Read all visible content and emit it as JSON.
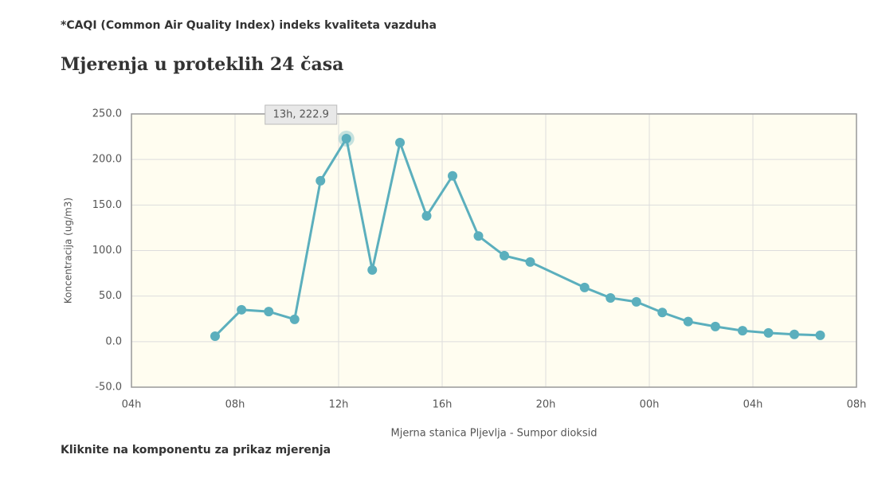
{
  "header": {
    "note": "*CAQI (Common Air Quality Index) indeks kvaliteta vazduha",
    "title": "Mjerenja u proteklih 24 časa"
  },
  "chart_data": {
    "type": "line",
    "ylabel": "Koncentracija (ug/m3)",
    "xlabel": "Mjerna stanica Pljevlja - Sumpor dioksid",
    "tooltip": "13h, 222.9",
    "x": [
      7.23,
      8.25,
      9.3,
      10.3,
      11.3,
      12.3,
      13.3,
      14.37,
      15.4,
      16.4,
      17.4,
      18.4,
      19.4,
      21.5,
      22.5,
      23.5,
      24.5,
      25.5,
      26.55,
      27.6,
      28.6,
      29.6,
      30.6
    ],
    "series": [
      {
        "name": "Sumpor dioksid",
        "color": "#5bafbd",
        "values": [
          6,
          35,
          33,
          24.5,
          176.6,
          222.9,
          78.7,
          218.5,
          138,
          182,
          116,
          94.4,
          87.4,
          59.4,
          48,
          43.7,
          32,
          22,
          16.6,
          12,
          9.6,
          7.9,
          7
        ]
      }
    ],
    "xlim": [
      4,
      32
    ],
    "xticks": [
      {
        "value": 4,
        "label": "04h"
      },
      {
        "value": 8,
        "label": "08h"
      },
      {
        "value": 12,
        "label": "12h"
      },
      {
        "value": 16,
        "label": "16h"
      },
      {
        "value": 20,
        "label": "20h"
      },
      {
        "value": 24,
        "label": "00h"
      },
      {
        "value": 28,
        "label": "04h"
      },
      {
        "value": 32,
        "label": "08h"
      }
    ],
    "ylim": [
      -50,
      250
    ],
    "yticks": [
      {
        "value": -50,
        "label": "-50.0"
      },
      {
        "value": 0,
        "label": "0.0"
      },
      {
        "value": 50,
        "label": "50.0"
      },
      {
        "value": 100,
        "label": "100.0"
      },
      {
        "value": 150,
        "label": "150.0"
      },
      {
        "value": 200,
        "label": "200.0"
      },
      {
        "value": 250,
        "label": "250.0"
      }
    ],
    "grid": true,
    "background": "#fffdf0"
  },
  "footer": "Kliknite na komponentu za prikaz mjerenja"
}
